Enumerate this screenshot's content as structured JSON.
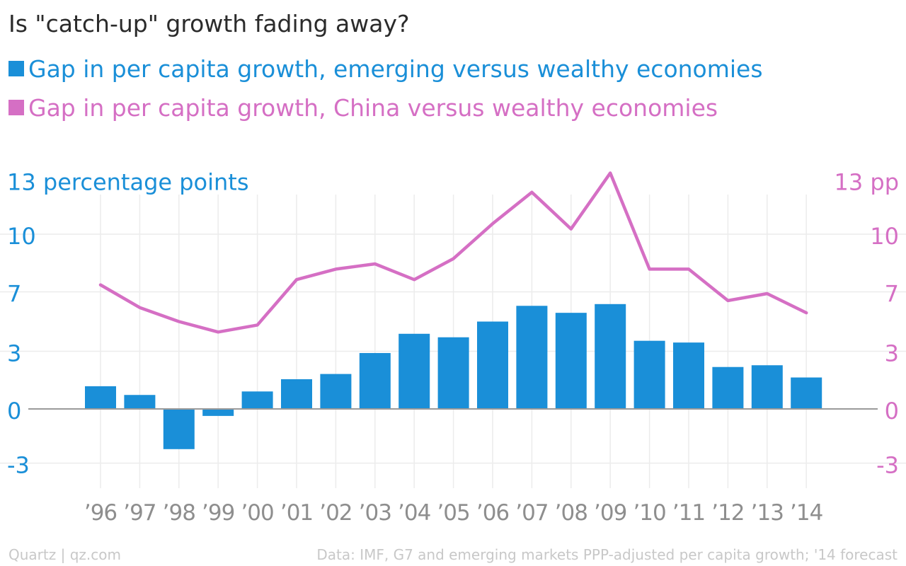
{
  "chart_data": {
    "type": "bar",
    "title": "Is \"catch-up\" growth fading away?",
    "categories": [
      "’96",
      "’97",
      "’98",
      "’99",
      "’00",
      "’01",
      "’02",
      "’03",
      "’04",
      "’05",
      "’06",
      "’07",
      "’08",
      "’09",
      "’10",
      "’11",
      "’12",
      "’13",
      "’14"
    ],
    "series": [
      {
        "name": "Gap in per capita growth, emerging versus wealthy economies",
        "type": "bar",
        "axis": "left",
        "color": "#1a8fd8",
        "values": [
          1.3,
          0.8,
          -2.3,
          -0.4,
          1.0,
          1.7,
          2.0,
          3.2,
          4.3,
          4.1,
          5.0,
          5.9,
          5.5,
          6.0,
          3.9,
          3.8,
          2.4,
          2.5,
          1.8
        ]
      },
      {
        "name": "Gap in per capita growth, China versus wealthy economies",
        "type": "line",
        "axis": "right",
        "color": "#d56fc4",
        "values": [
          7.1,
          5.8,
          5.0,
          4.4,
          4.8,
          7.4,
          8.0,
          8.3,
          7.4,
          8.6,
          10.6,
          12.4,
          10.3,
          13.5,
          8.0,
          8.0,
          6.2,
          6.6,
          5.5
        ]
      }
    ],
    "y_axis_left": {
      "label": "13 percentage points",
      "ticks": [
        {
          "v": 10,
          "label": "10"
        },
        {
          "v": 6.7,
          "label": "7"
        },
        {
          "v": 3.3,
          "label": "3"
        },
        {
          "v": 0,
          "label": "0"
        },
        {
          "v": -3.1,
          "label": "-3"
        }
      ]
    },
    "y_axis_right": {
      "label": "13 pp",
      "ticks": [
        {
          "v": 10,
          "label": "10"
        },
        {
          "v": 6.7,
          "label": "7"
        },
        {
          "v": 3.3,
          "label": "3"
        },
        {
          "v": 0,
          "label": "0"
        },
        {
          "v": -3.1,
          "label": "-3"
        }
      ]
    },
    "ylim": [
      -4.5,
      13.5
    ],
    "grid": true,
    "legend_placement": "top-left",
    "source_left": "Quartz | qz.com",
    "source_right": "Data: IMF, G7 and emerging markets PPP-adjusted per capita growth; '14 forecast"
  }
}
